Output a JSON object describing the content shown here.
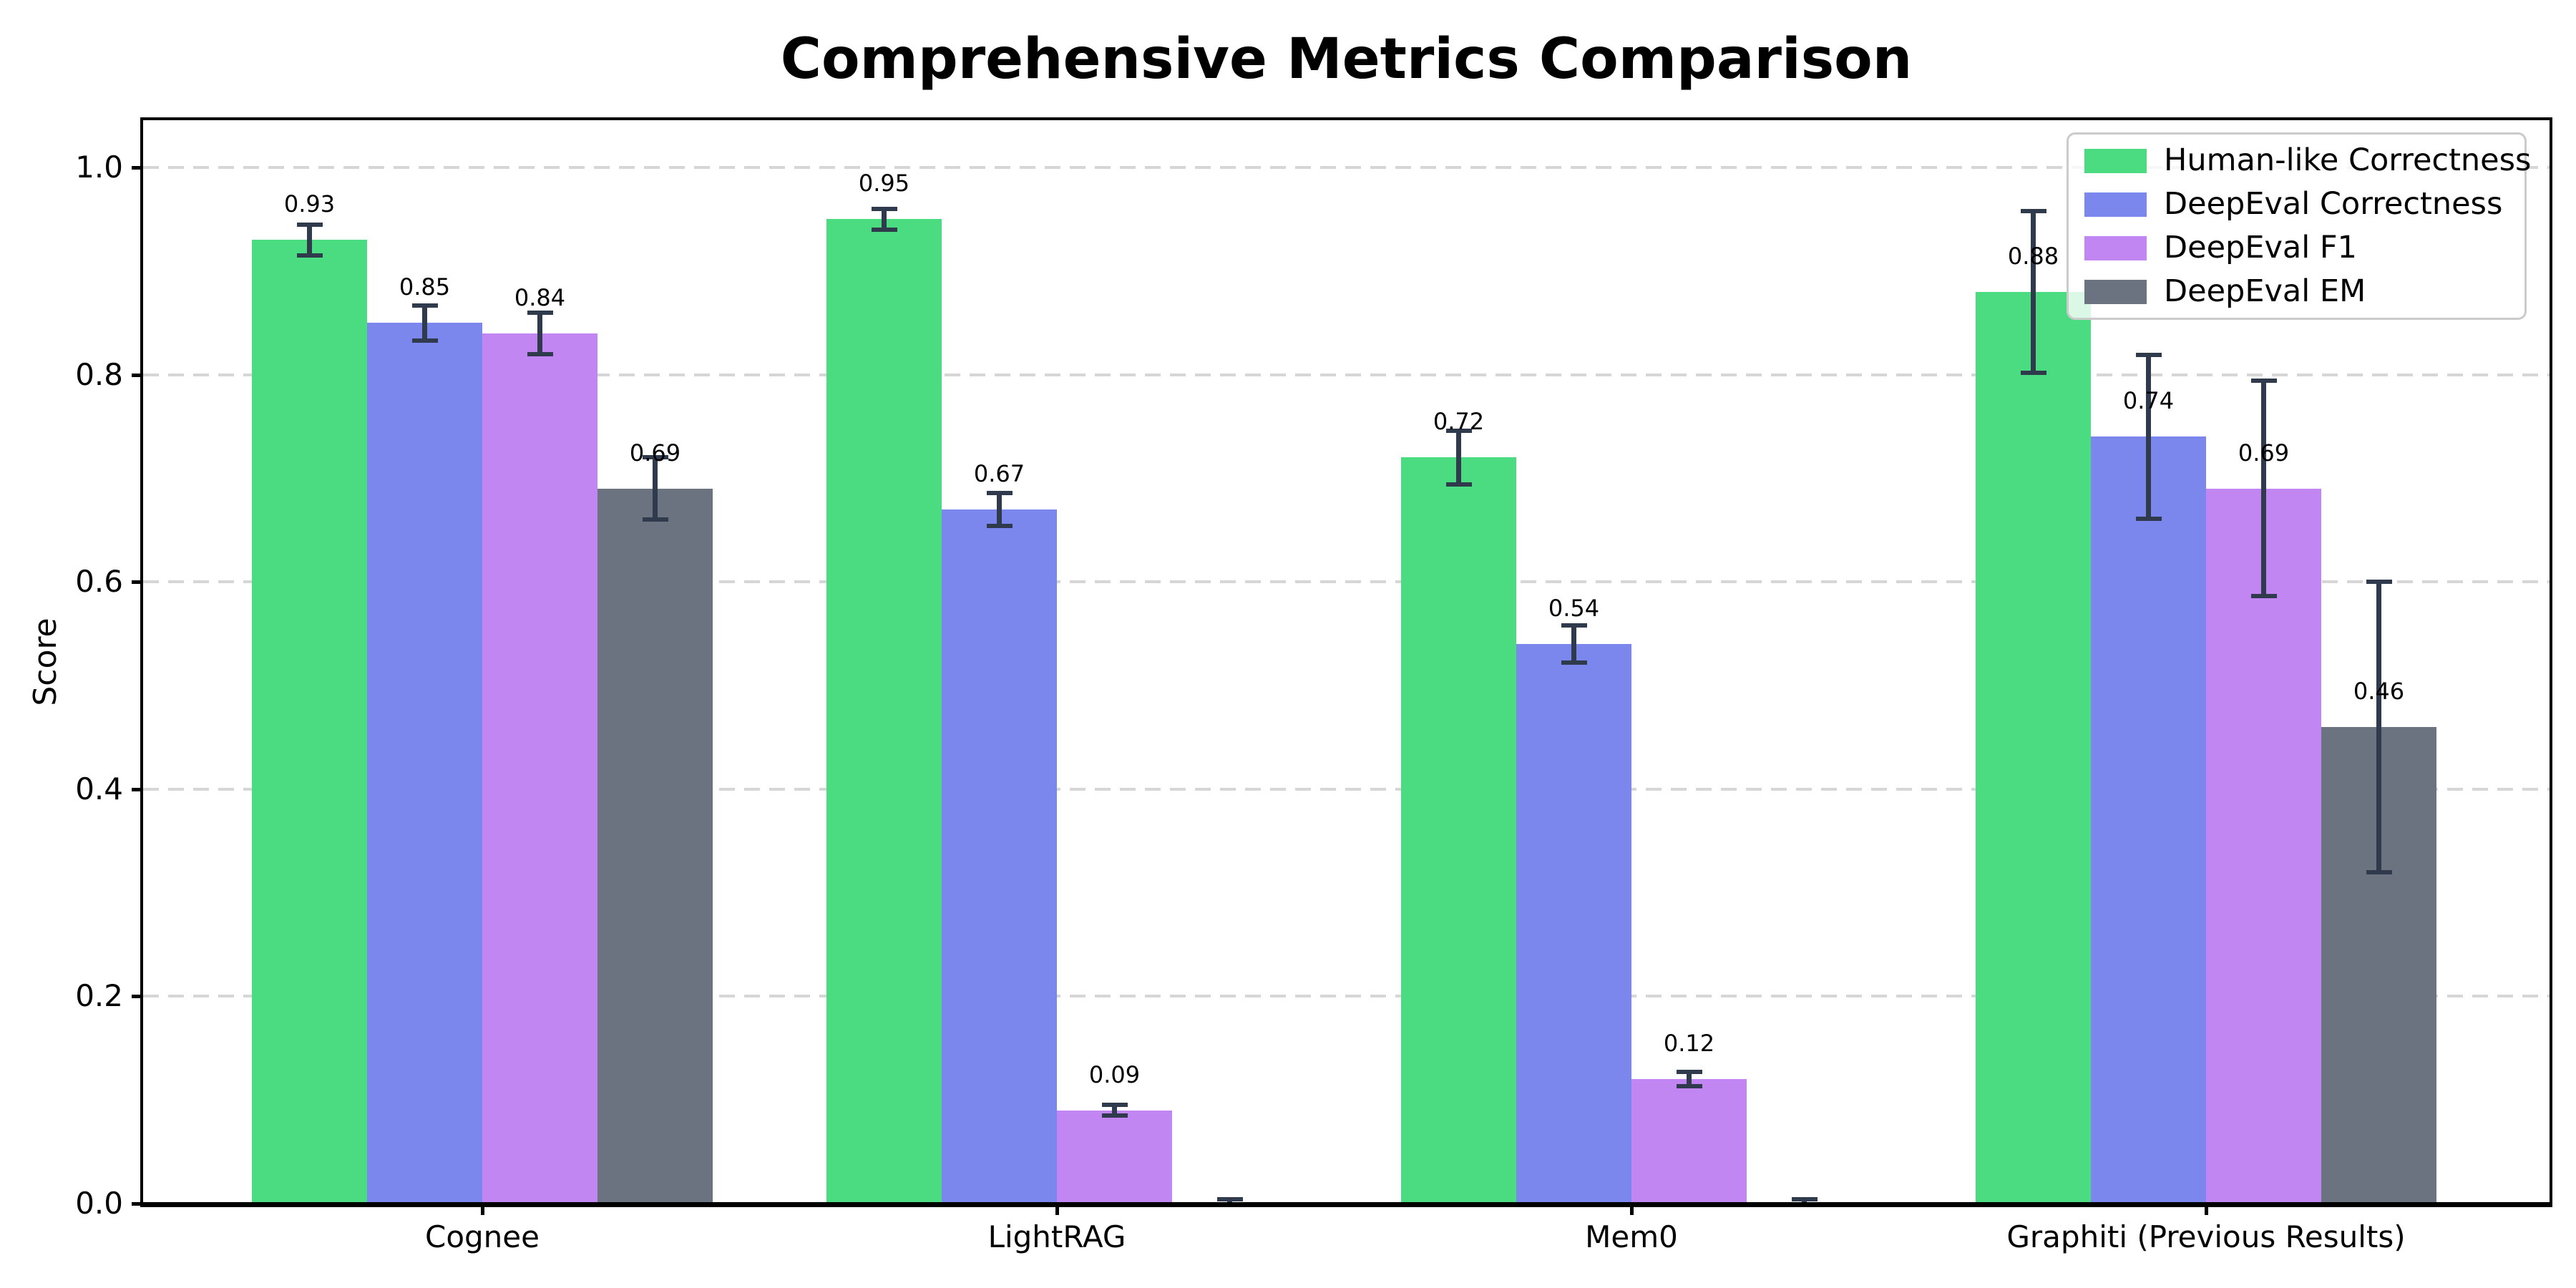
{
  "chart_data": {
    "type": "bar",
    "title": "Comprehensive Metrics Comparison",
    "xlabel": "",
    "ylabel": "Score",
    "ylim": [
      0,
      1.045
    ],
    "yticks": [
      0.0,
      0.2,
      0.4,
      0.6,
      0.8,
      1.0
    ],
    "ytick_labels": [
      "0.0",
      "0.2",
      "0.4",
      "0.6",
      "0.8",
      "1.0"
    ],
    "grid": "horizontal dashed gridlines at each y tick",
    "legend_position": "upper right",
    "categories": [
      "Cognee",
      "LightRAG",
      "Mem0",
      "Graphiti (Previous Results)"
    ],
    "series": [
      {
        "name": "Human-like Correctness",
        "color": "#4bdb81",
        "values": [
          0.93,
          0.95,
          0.72,
          0.88
        ],
        "errors": [
          0.015,
          0.01,
          0.026,
          0.078
        ],
        "bar_labels": [
          "0.93",
          "0.95",
          "0.72",
          "0.88"
        ]
      },
      {
        "name": "DeepEval Correctness",
        "color": "#7c87ee",
        "values": [
          0.85,
          0.67,
          0.54,
          0.74
        ],
        "errors": [
          0.017,
          0.016,
          0.018,
          0.079
        ],
        "bar_labels": [
          "0.85",
          "0.67",
          "0.54",
          "0.74"
        ]
      },
      {
        "name": "DeepEval F1",
        "color": "#c186f2",
        "values": [
          0.84,
          0.09,
          0.12,
          0.69
        ],
        "errors": [
          0.02,
          0.005,
          0.007,
          0.104
        ],
        "bar_labels": [
          "0.84",
          "0.09",
          "0.12",
          "0.69"
        ]
      },
      {
        "name": "DeepEval EM",
        "color": "#6b7280",
        "values": [
          0.69,
          0.0,
          0.0,
          0.46
        ],
        "errors": [
          0.03,
          0.004,
          0.004,
          0.14
        ],
        "bar_labels": [
          "0.69",
          "",
          "",
          "0.46"
        ]
      }
    ],
    "error_bar_color": "#2f3b4d",
    "grid_color": "#d6d6d6",
    "axis_color": "#000000",
    "background_color": "#ffffff"
  }
}
